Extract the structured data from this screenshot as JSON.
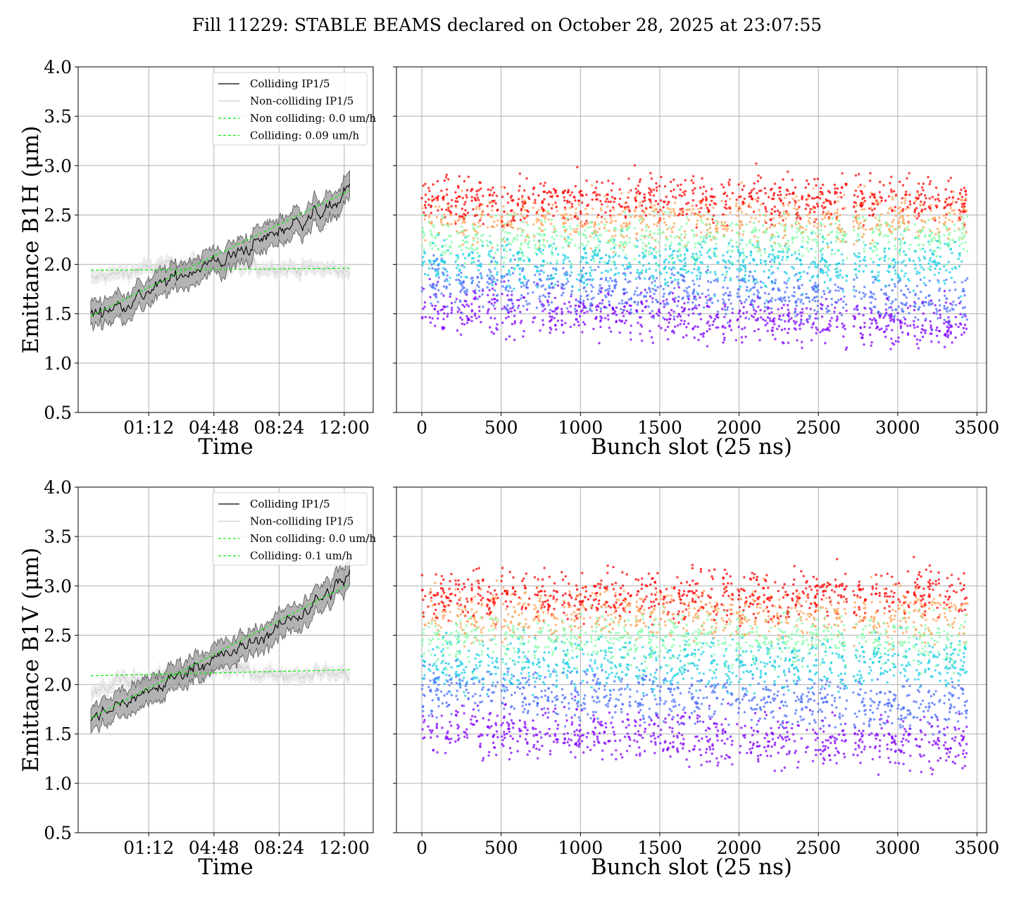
{
  "figure": {
    "suptitle": "Fill 11229: STABLE BEAMS declared on October 28, 2025 at 23:07:55"
  },
  "colors": {
    "colliding": "#000000",
    "colliding_band": "#808080",
    "non_colliding": "#cccccc",
    "non_colliding_band": "#e6e6e6",
    "fit": "#00ee00",
    "grid": "#b0b0b0",
    "rainbow": [
      "#8000ff",
      "#4c6ff9",
      "#18cde4",
      "#7ffda7",
      "#ffa256",
      "#ff0000"
    ]
  },
  "chart_data": [
    {
      "type": "line",
      "xlabel": "Time",
      "ylabel": "Emittance B1H (μm)",
      "x_ticks": [
        "01:12",
        "04:48",
        "08:24",
        "12:00"
      ],
      "x_tick_hours": [
        1.2,
        4.8,
        8.4,
        12.0
      ],
      "x_range_hours": [
        -2.7,
        13.6
      ],
      "ylim": [
        0.5,
        4.0
      ],
      "y_ticks": [
        "0.5",
        "1.0",
        "1.5",
        "2.0",
        "2.5",
        "3.0",
        "3.5",
        "4.0"
      ],
      "grid": true,
      "legend_position": "upper right",
      "legend": [
        "Colliding IP1/5",
        "Non-colliding IP1/5",
        "Non colliding: 0.0 um/h",
        "Colliding: 0.09 um/h"
      ],
      "series": [
        {
          "name": "Colliding IP1/5",
          "x_hours": [
            -2.0,
            -0.5,
            1.0,
            2.5,
            4.0,
            5.5,
            7.0,
            8.5,
            10.0,
            11.5,
            12.3
          ],
          "values": [
            1.48,
            1.58,
            1.7,
            1.85,
            1.98,
            2.05,
            2.2,
            2.35,
            2.48,
            2.6,
            2.78
          ]
        },
        {
          "name": "Non-colliding IP1/5",
          "x_hours": [
            -2.0,
            0.0,
            2.0,
            4.0,
            6.0,
            8.0,
            10.0,
            12.3
          ],
          "values": [
            1.85,
            1.92,
            1.98,
            2.02,
            1.95,
            1.97,
            1.96,
            1.92
          ]
        },
        {
          "name": "Non colliding: 0.0 um/h",
          "x_hours": [
            -2.0,
            12.3
          ],
          "values": [
            1.94,
            1.96
          ]
        },
        {
          "name": "Colliding: 0.09 um/h",
          "x_hours": [
            -2.0,
            12.3
          ],
          "values": [
            1.48,
            2.75
          ]
        }
      ]
    },
    {
      "type": "scatter",
      "xlabel": "Bunch slot (25 ns)",
      "ylabel": "",
      "x_ticks": [
        0,
        500,
        1000,
        1500,
        2000,
        2500,
        3000,
        3500
      ],
      "xlim": [
        -160,
        3560
      ],
      "ylim": [
        0.5,
        4.0
      ],
      "grid": true,
      "bunch_trains": [
        [
          0,
          25
        ],
        [
          40,
          110
        ],
        [
          120,
          190
        ],
        [
          210,
          300
        ],
        [
          310,
          390
        ],
        [
          410,
          480
        ],
        [
          500,
          590
        ],
        [
          600,
          680
        ],
        [
          700,
          780
        ],
        [
          790,
          860
        ],
        [
          880,
          950
        ],
        [
          960,
          1050
        ],
        [
          1060,
          1140
        ],
        [
          1150,
          1230
        ],
        [
          1240,
          1320
        ],
        [
          1340,
          1420
        ],
        [
          1430,
          1510
        ],
        [
          1520,
          1600
        ],
        [
          1610,
          1690
        ],
        [
          1700,
          1780
        ],
        [
          1790,
          1870
        ],
        [
          1890,
          1960
        ],
        [
          1980,
          2050
        ],
        [
          2060,
          2140
        ],
        [
          2150,
          2230
        ],
        [
          2240,
          2320
        ],
        [
          2330,
          2410
        ],
        [
          2420,
          2500
        ],
        [
          2510,
          2590
        ],
        [
          2600,
          2680
        ],
        [
          2720,
          2800
        ],
        [
          2820,
          2900
        ],
        [
          2910,
          2990
        ],
        [
          3000,
          3080
        ],
        [
          3100,
          3180
        ],
        [
          3190,
          3270
        ],
        [
          3290,
          3370
        ],
        [
          3380,
          3440
        ]
      ],
      "color_levels": [
        1.55,
        1.8,
        2.0,
        2.25,
        2.45,
        2.65
      ],
      "spread": 0.12
    },
    {
      "type": "line",
      "xlabel": "Time",
      "ylabel": "Emittance B1V (μm)",
      "x_ticks": [
        "01:12",
        "04:48",
        "08:24",
        "12:00"
      ],
      "x_tick_hours": [
        1.2,
        4.8,
        8.4,
        12.0
      ],
      "x_range_hours": [
        -2.7,
        13.6
      ],
      "ylim": [
        0.5,
        4.0
      ],
      "y_ticks": [
        "0.5",
        "1.0",
        "1.5",
        "2.0",
        "2.5",
        "3.0",
        "3.5",
        "4.0"
      ],
      "grid": true,
      "legend_position": "upper right",
      "legend": [
        "Colliding IP1/5",
        "Non-colliding IP1/5",
        "Non colliding: 0.0 um/h",
        "Colliding: 0.1 um/h"
      ],
      "series": [
        {
          "name": "Colliding IP1/5",
          "x_hours": [
            -2.0,
            -0.5,
            1.0,
            2.5,
            4.0,
            5.5,
            7.0,
            8.5,
            10.0,
            11.5,
            12.3
          ],
          "values": [
            1.62,
            1.8,
            1.92,
            2.05,
            2.22,
            2.3,
            2.42,
            2.6,
            2.78,
            2.98,
            3.12
          ]
        },
        {
          "name": "Non-colliding IP1/5",
          "x_hours": [
            -2.0,
            0.0,
            2.0,
            4.0,
            6.0,
            8.0,
            10.0,
            12.3
          ],
          "values": [
            1.9,
            2.05,
            2.1,
            2.12,
            2.15,
            2.1,
            2.12,
            2.1
          ]
        },
        {
          "name": "Non colliding: 0.0 um/h",
          "x_hours": [
            -2.0,
            12.3
          ],
          "values": [
            2.09,
            2.15
          ]
        },
        {
          "name": "Colliding: 0.1 um/h",
          "x_hours": [
            -2.0,
            12.3
          ],
          "values": [
            1.66,
            3.02
          ]
        }
      ]
    },
    {
      "type": "scatter",
      "xlabel": "Bunch slot (25 ns)",
      "ylabel": "",
      "x_ticks": [
        0,
        500,
        1000,
        1500,
        2000,
        2500,
        3000,
        3500
      ],
      "xlim": [
        -160,
        3560
      ],
      "ylim": [
        0.5,
        4.0
      ],
      "grid": true,
      "bunch_trains": [
        [
          0,
          25
        ],
        [
          40,
          110
        ],
        [
          120,
          190
        ],
        [
          210,
          300
        ],
        [
          310,
          390
        ],
        [
          410,
          480
        ],
        [
          500,
          590
        ],
        [
          600,
          680
        ],
        [
          700,
          780
        ],
        [
          790,
          860
        ],
        [
          880,
          950
        ],
        [
          960,
          1050
        ],
        [
          1060,
          1140
        ],
        [
          1150,
          1230
        ],
        [
          1240,
          1320
        ],
        [
          1340,
          1420
        ],
        [
          1430,
          1510
        ],
        [
          1520,
          1600
        ],
        [
          1610,
          1690
        ],
        [
          1700,
          1780
        ],
        [
          1790,
          1870
        ],
        [
          1890,
          1960
        ],
        [
          1980,
          2050
        ],
        [
          2060,
          2140
        ],
        [
          2150,
          2230
        ],
        [
          2240,
          2320
        ],
        [
          2330,
          2410
        ],
        [
          2420,
          2500
        ],
        [
          2510,
          2590
        ],
        [
          2600,
          2680
        ],
        [
          2720,
          2800
        ],
        [
          2820,
          2900
        ],
        [
          2910,
          2990
        ],
        [
          3000,
          3080
        ],
        [
          3100,
          3180
        ],
        [
          3190,
          3270
        ],
        [
          3290,
          3370
        ],
        [
          3380,
          3440
        ]
      ],
      "color_levels": [
        1.55,
        1.95,
        2.2,
        2.45,
        2.7,
        2.9
      ],
      "spread": 0.13
    }
  ]
}
